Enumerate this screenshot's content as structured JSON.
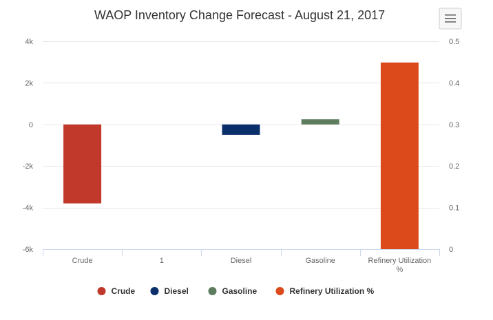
{
  "chart_data": {
    "type": "bar",
    "title": "WAOP Inventory Change Forecast - August 21, 2017",
    "categories": [
      "Crude",
      "1",
      "Diesel",
      "Gasoline",
      "Refinery Utilization %"
    ],
    "category_lines": [
      [
        "Crude"
      ],
      [
        "1"
      ],
      [
        "Diesel"
      ],
      [
        "Gasoline"
      ],
      [
        "Refinery Utilization",
        "%"
      ]
    ],
    "y_left": {
      "ticks": [
        "4k",
        "2k",
        "0",
        "-2k",
        "-4k",
        "-6k"
      ],
      "tick_values": [
        4000,
        2000,
        0,
        -2000,
        -4000,
        -6000
      ],
      "range": [
        -6000,
        4000
      ]
    },
    "y_right": {
      "ticks": [
        "0.5",
        "0.4",
        "0.3",
        "0.2",
        "0.1",
        "0"
      ],
      "tick_values": [
        0.5,
        0.4,
        0.3,
        0.2,
        0.1,
        0
      ],
      "range": [
        0,
        0.5
      ]
    },
    "grid": true,
    "legend_position": "bottom",
    "series": [
      {
        "name": "Crude",
        "color": "#c0392b",
        "axis": "left",
        "category": "Crude",
        "value": -3800
      },
      {
        "name": "Diesel",
        "color": "#0b2f6b",
        "axis": "left",
        "category": "Diesel",
        "value": -500
      },
      {
        "name": "Gasoline",
        "color": "#5e7d5e",
        "axis": "left",
        "category": "Gasoline",
        "value": 250
      },
      {
        "name": "Refinery Utilization %",
        "color": "#dc4a1b",
        "axis": "right",
        "category": "Refinery Utilization %",
        "value": 0.449
      }
    ]
  },
  "menu": {
    "icon": "hamburger-menu-icon"
  }
}
